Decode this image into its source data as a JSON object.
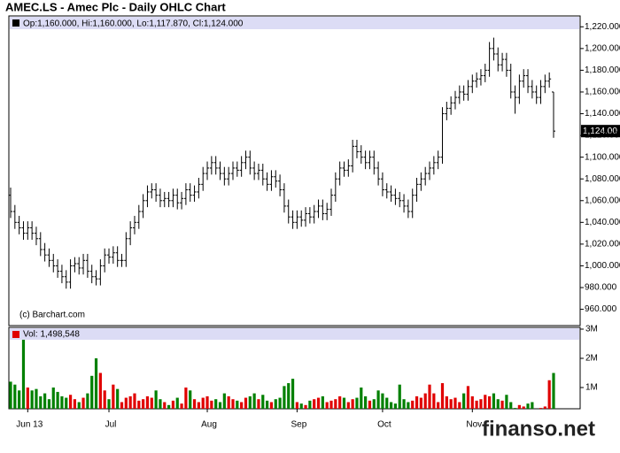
{
  "chart_data": {
    "type": "ohlc",
    "title": "AMEC.LS - Amec Plc - Daily OHLC Chart",
    "legend_text": "Op:1,160.000, Hi:1,160.000, Lo:1,117.870, Cl:1,124.000",
    "copyright": "(c) Barchart.com",
    "watermark": "finanso.net",
    "color": "#000000",
    "categories": [
      null,
      null,
      null,
      null,
      "Jun 13",
      null,
      null,
      null,
      null,
      null,
      null,
      null,
      null,
      null,
      null,
      null,
      null,
      null,
      null,
      null,
      null,
      null,
      null,
      "Jul",
      null,
      null,
      null,
      null,
      null,
      null,
      null,
      null,
      null,
      null,
      null,
      null,
      null,
      null,
      null,
      null,
      null,
      null,
      null,
      null,
      null,
      null,
      "Aug",
      null,
      null,
      null,
      null,
      null,
      null,
      null,
      null,
      null,
      null,
      null,
      null,
      null,
      null,
      null,
      null,
      null,
      null,
      null,
      null,
      "Sep",
      null,
      null,
      null,
      null,
      null,
      null,
      null,
      null,
      null,
      null,
      null,
      null,
      null,
      null,
      null,
      null,
      null,
      null,
      null,
      "Oct",
      null,
      null,
      null,
      null,
      null,
      null,
      null,
      null,
      null,
      null,
      null,
      null,
      null,
      null,
      null,
      null,
      null,
      null,
      null,
      null,
      "Nov",
      null,
      null,
      null,
      null,
      null,
      null,
      null,
      null,
      null,
      null,
      null,
      null,
      null,
      null,
      null,
      null,
      null,
      null,
      null
    ],
    "open": [
      1065,
      1050,
      1040,
      1035,
      1030,
      1035,
      1030,
      1025,
      1015,
      1010,
      1005,
      1000,
      995,
      990,
      985,
      1000,
      1002,
      998,
      1005,
      995,
      990,
      988,
      1000,
      1010,
      1008,
      1012,
      1005,
      1005,
      1025,
      1035,
      1040,
      1050,
      1060,
      1068,
      1070,
      1065,
      1060,
      1062,
      1060,
      1065,
      1058,
      1062,
      1070,
      1065,
      1068,
      1075,
      1085,
      1090,
      1095,
      1090,
      1085,
      1080,
      1085,
      1090,
      1088,
      1095,
      1100,
      1090,
      1085,
      1088,
      1080,
      1075,
      1082,
      1078,
      1070,
      1055,
      1045,
      1040,
      1045,
      1042,
      1048,
      1045,
      1050,
      1055,
      1048,
      1052,
      1065,
      1080,
      1090,
      1088,
      1092,
      1110,
      1105,
      1100,
      1095,
      1100,
      1090,
      1080,
      1070,
      1068,
      1065,
      1062,
      1060,
      1055,
      1050,
      1065,
      1075,
      1080,
      1085,
      1090,
      1095,
      1100,
      1140,
      1145,
      1150,
      1155,
      1160,
      1158,
      1165,
      1170,
      1172,
      1175,
      1180,
      1200,
      1195,
      1185,
      1190,
      1180,
      1160,
      1155,
      1170,
      1175,
      1165,
      1160,
      1155,
      1165,
      1170,
      1160
    ],
    "high": [
      1072,
      1056,
      1046,
      1041,
      1041,
      1041,
      1036,
      1031,
      1021,
      1016,
      1011,
      1006,
      1001,
      996,
      1006,
      1008,
      1008,
      1011,
      1011,
      1001,
      996,
      1006,
      1016,
      1016,
      1018,
      1018,
      1011,
      1031,
      1041,
      1046,
      1056,
      1066,
      1074,
      1076,
      1076,
      1071,
      1068,
      1068,
      1071,
      1071,
      1068,
      1076,
      1076,
      1074,
      1081,
      1091,
      1096,
      1101,
      1101,
      1096,
      1091,
      1091,
      1096,
      1096,
      1101,
      1106,
      1106,
      1096,
      1094,
      1094,
      1086,
      1088,
      1088,
      1084,
      1076,
      1061,
      1051,
      1051,
      1051,
      1054,
      1054,
      1056,
      1061,
      1061,
      1058,
      1071,
      1086,
      1096,
      1096,
      1098,
      1116,
      1116,
      1111,
      1106,
      1106,
      1106,
      1096,
      1086,
      1076,
      1074,
      1071,
      1068,
      1066,
      1061,
      1071,
      1081,
      1086,
      1091,
      1096,
      1101,
      1106,
      1146,
      1151,
      1156,
      1161,
      1166,
      1166,
      1171,
      1176,
      1178,
      1181,
      1186,
      1206,
      1210,
      1201,
      1196,
      1196,
      1186,
      1166,
      1176,
      1181,
      1181,
      1171,
      1166,
      1171,
      1176,
      1178,
      1160
    ],
    "low": [
      1044,
      1034,
      1029,
      1024,
      1024,
      1024,
      1019,
      1009,
      1004,
      999,
      994,
      989,
      984,
      979,
      979,
      994,
      992,
      992,
      989,
      984,
      982,
      982,
      994,
      1002,
      1002,
      999,
      999,
      999,
      1019,
      1029,
      1034,
      1044,
      1054,
      1062,
      1059,
      1054,
      1054,
      1054,
      1054,
      1052,
      1052,
      1056,
      1059,
      1059,
      1062,
      1069,
      1079,
      1084,
      1084,
      1079,
      1074,
      1074,
      1079,
      1082,
      1082,
      1089,
      1084,
      1079,
      1079,
      1074,
      1069,
      1069,
      1072,
      1064,
      1049,
      1039,
      1034,
      1034,
      1036,
      1036,
      1039,
      1039,
      1044,
      1042,
      1042,
      1046,
      1059,
      1074,
      1082,
      1082,
      1086,
      1099,
      1094,
      1089,
      1089,
      1084,
      1074,
      1064,
      1062,
      1059,
      1056,
      1054,
      1049,
      1044,
      1044,
      1059,
      1069,
      1074,
      1079,
      1084,
      1089,
      1094,
      1134,
      1139,
      1144,
      1149,
      1152,
      1152,
      1159,
      1164,
      1166,
      1169,
      1174,
      1189,
      1179,
      1179,
      1174,
      1154,
      1140,
      1149,
      1164,
      1159,
      1154,
      1149,
      1149,
      1159,
      1164,
      1117.87
    ],
    "close": [
      1050,
      1040,
      1035,
      1030,
      1035,
      1030,
      1025,
      1015,
      1010,
      1005,
      1000,
      995,
      990,
      985,
      1000,
      1002,
      998,
      1005,
      995,
      990,
      988,
      1000,
      1010,
      1008,
      1012,
      1005,
      1005,
      1025,
      1035,
      1040,
      1050,
      1060,
      1068,
      1070,
      1065,
      1060,
      1062,
      1060,
      1065,
      1058,
      1062,
      1070,
      1065,
      1068,
      1075,
      1085,
      1090,
      1095,
      1090,
      1085,
      1080,
      1085,
      1090,
      1088,
      1095,
      1100,
      1090,
      1085,
      1088,
      1080,
      1075,
      1082,
      1078,
      1070,
      1055,
      1045,
      1040,
      1045,
      1042,
      1048,
      1045,
      1050,
      1055,
      1048,
      1052,
      1065,
      1080,
      1090,
      1088,
      1092,
      1110,
      1105,
      1100,
      1095,
      1100,
      1090,
      1080,
      1070,
      1068,
      1065,
      1062,
      1060,
      1055,
      1050,
      1065,
      1075,
      1080,
      1085,
      1090,
      1095,
      1100,
      1140,
      1145,
      1150,
      1155,
      1160,
      1158,
      1165,
      1170,
      1172,
      1175,
      1180,
      1200,
      1195,
      1185,
      1190,
      1180,
      1160,
      1155,
      1170,
      1175,
      1165,
      1160,
      1155,
      1165,
      1170,
      1172,
      1124
    ],
    "last_label": "1,124.00",
    "ylim": [
      945,
      1230
    ],
    "yticks": [
      {
        "value": 960,
        "label": "960.000"
      },
      {
        "value": 980,
        "label": "980.000"
      },
      {
        "value": 1000,
        "label": "1,000.000"
      },
      {
        "value": 1020,
        "label": "1,020.000"
      },
      {
        "value": 1040,
        "label": "1,040.000"
      },
      {
        "value": 1060,
        "label": "1,060.000"
      },
      {
        "value": 1080,
        "label": "1,080.000"
      },
      {
        "value": 1100,
        "label": "1,100.000"
      },
      {
        "value": 1120,
        "label": "1,120.000"
      },
      {
        "value": 1140,
        "label": "1,140.000"
      },
      {
        "value": 1160,
        "label": "1,160.000"
      },
      {
        "value": 1180,
        "label": "1,180.000"
      },
      {
        "value": 1200,
        "label": "1,200.000"
      },
      {
        "value": 1220,
        "label": "1,220.000"
      }
    ],
    "volume": {
      "label": "Vol: 1,498,548",
      "up_color": "#e00000",
      "down_color": "#008000",
      "values": [
        1200000,
        1100000,
        900000,
        3200000,
        1000000,
        900000,
        950000,
        700000,
        800000,
        600000,
        1000000,
        850000,
        700000,
        650000,
        750000,
        600000,
        500000,
        650000,
        800000,
        1400000,
        2000000,
        1500000,
        900000,
        600000,
        1100000,
        950000,
        500000,
        650000,
        700000,
        800000,
        550000,
        600000,
        700000,
        650000,
        900000,
        600000,
        500000,
        400000,
        550000,
        650000,
        450000,
        1000000,
        900000,
        600000,
        500000,
        650000,
        700000,
        550000,
        600000,
        500000,
        800000,
        700000,
        600000,
        550000,
        500000,
        650000,
        700000,
        800000,
        600000,
        750000,
        550000,
        500000,
        600000,
        650000,
        1050000,
        1150000,
        1300000,
        500000,
        450000,
        400000,
        550000,
        600000,
        650000,
        700000,
        500000,
        550000,
        600000,
        700000,
        650000,
        500000,
        600000,
        650000,
        1000000,
        700000,
        550000,
        600000,
        900000,
        800000,
        650000,
        500000,
        450000,
        1100000,
        600000,
        500000,
        550000,
        700000,
        650000,
        800000,
        1100000,
        800000,
        500000,
        1150000,
        700000,
        600000,
        650000,
        500000,
        800000,
        1050000,
        700000,
        550000,
        600000,
        750000,
        700000,
        800000,
        600000,
        550000,
        750000,
        500000,
        300000,
        400000,
        350000,
        450000,
        500000,
        250000,
        300000,
        350000,
        1250000,
        1498548
      ],
      "ylim": [
        0,
        3000000
      ],
      "yticks": [
        {
          "value": 1000000,
          "label": "1M"
        },
        {
          "value": 2000000,
          "label": "2M"
        },
        {
          "value": 3000000,
          "label": "3M"
        }
      ]
    }
  }
}
